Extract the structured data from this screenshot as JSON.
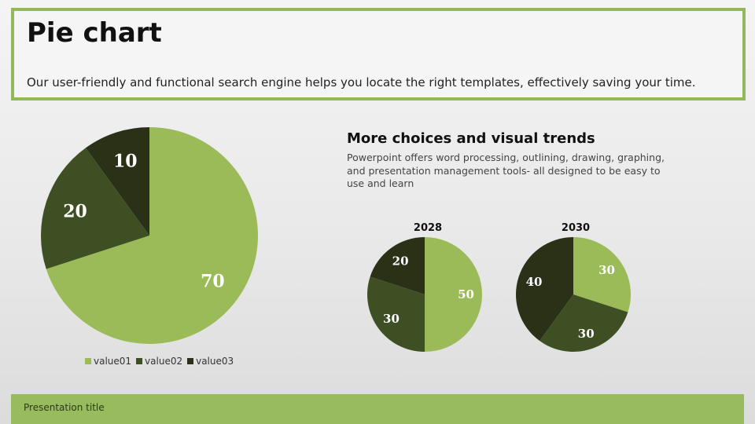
{
  "header": {
    "title": "Pie chart",
    "subtitle": "Our user-friendly and functional search engine helps you locate the right templates, effectively saving your time."
  },
  "section": {
    "heading": "More choices and visual trends",
    "text": "Powerpoint offers word processing, outlining, drawing, graphing, and presentation management tools- all designed to be easy to use and learn"
  },
  "footer": {
    "label": "Presentation title"
  },
  "colors": {
    "value01": "#9bbb59",
    "value02": "#3e5023",
    "value03": "#2a3117",
    "accent": "#93b75b"
  },
  "chart_data": [
    {
      "type": "pie",
      "title": "",
      "categories": [
        "value01",
        "value02",
        "value03"
      ],
      "values": [
        70,
        20,
        10
      ],
      "legend": "bottom"
    },
    {
      "type": "pie",
      "title": "2028",
      "categories": [
        "value01",
        "value02",
        "value03"
      ],
      "values": [
        50,
        30,
        20
      ]
    },
    {
      "type": "pie",
      "title": "2030",
      "categories": [
        "value01",
        "value02",
        "value03"
      ],
      "values": [
        30,
        30,
        40
      ]
    }
  ]
}
